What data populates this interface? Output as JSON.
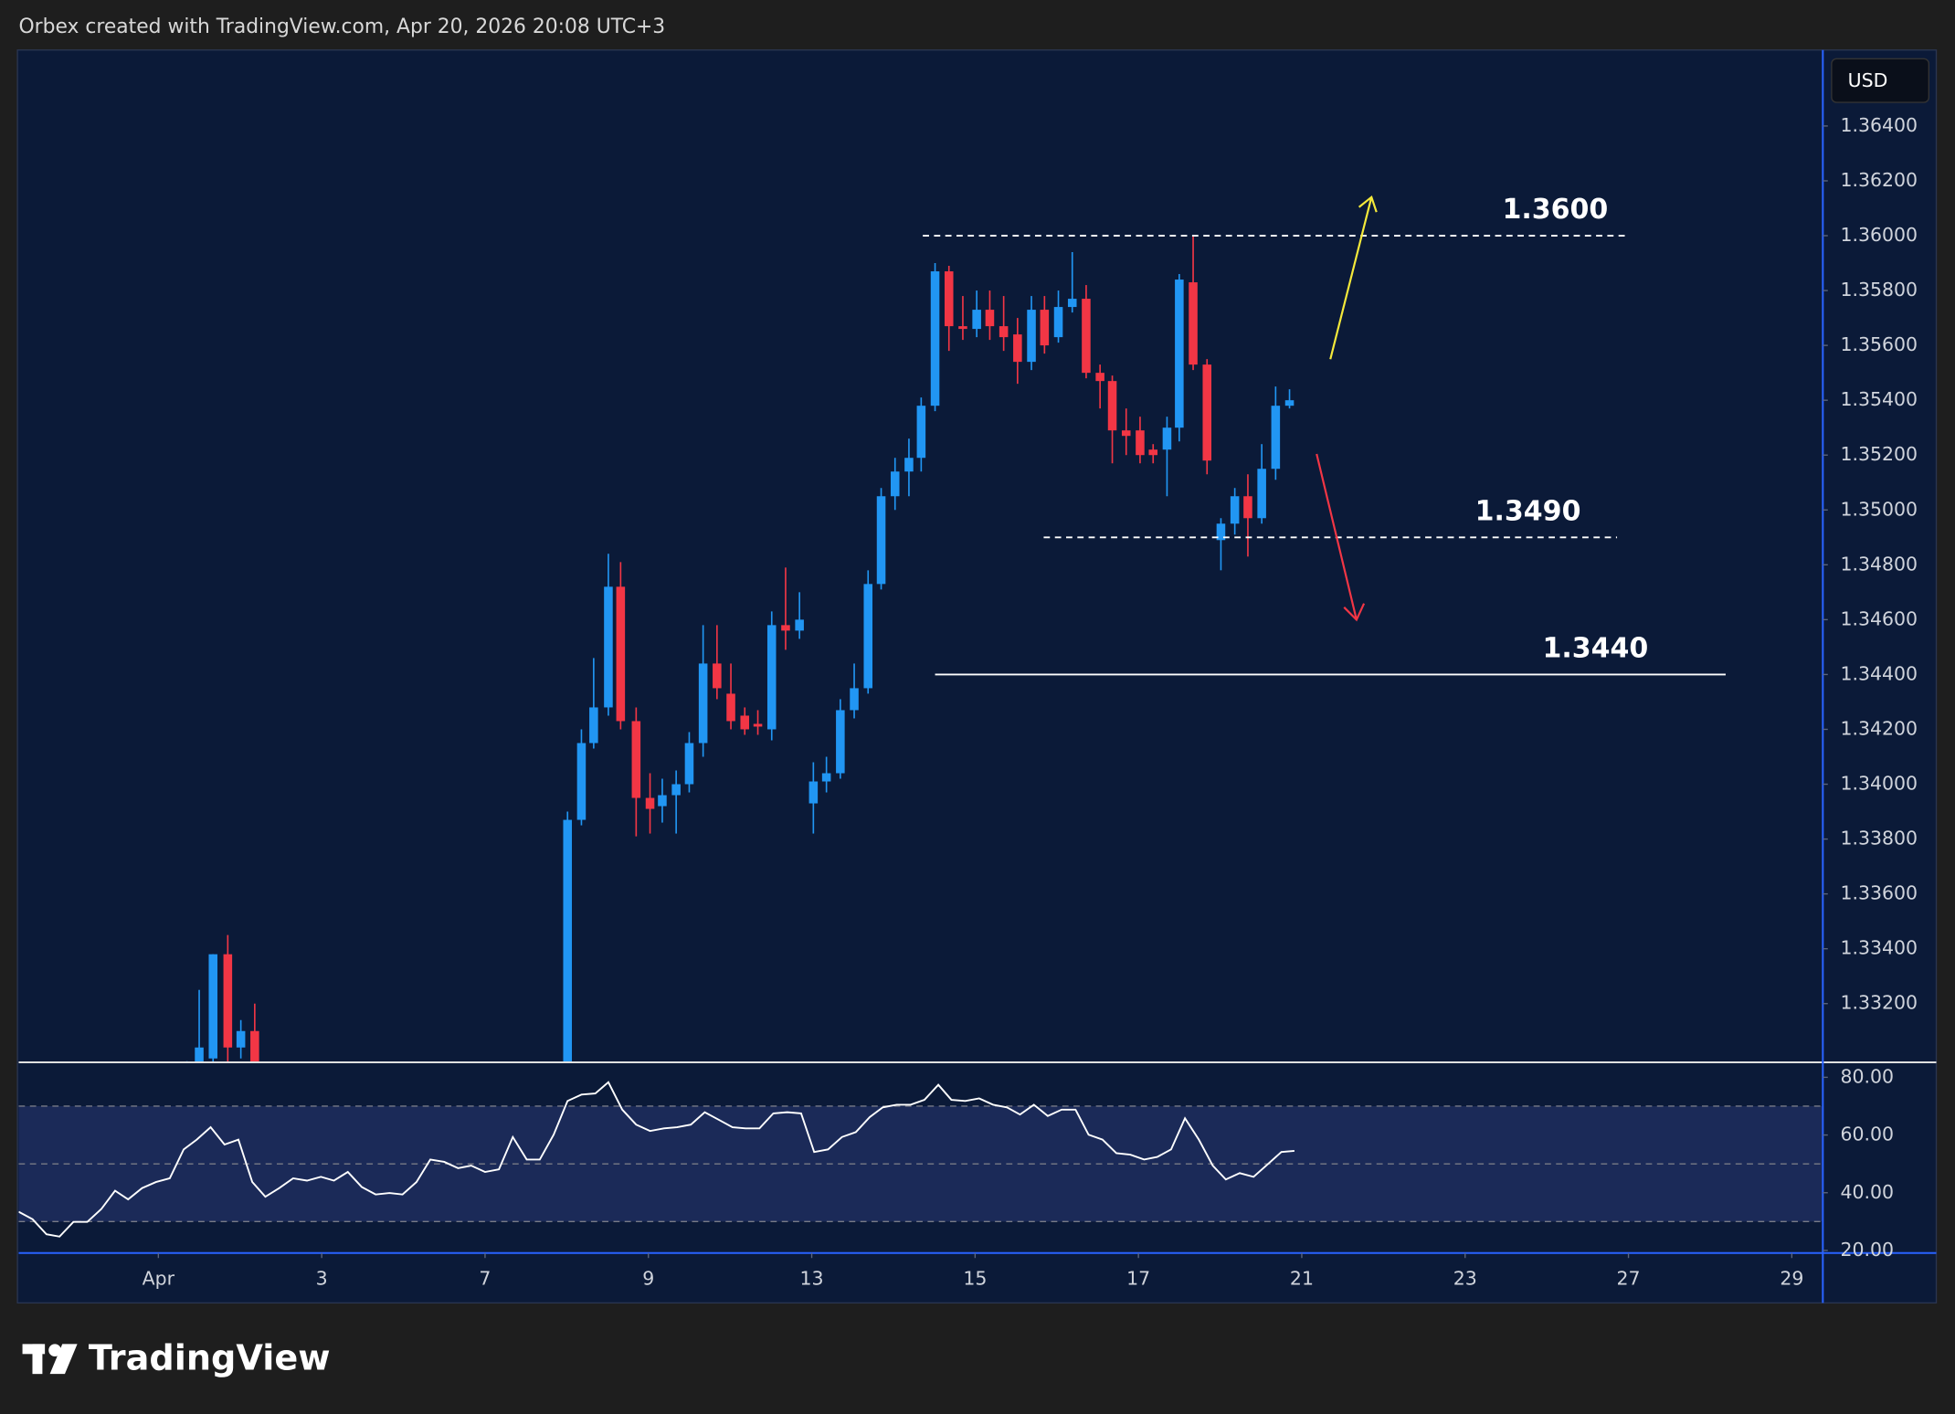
{
  "chart_data": {
    "type": "candlestick",
    "title": "Orbex created with TradingView.com, Apr 20, 2026 20:08 UTC+3",
    "currency": "USD",
    "up_color": "#2196f3",
    "down_color": "#f23645",
    "xlim": [
      -1.71,
      20.38
    ],
    "xticks": [
      {
        "value": 0,
        "label": "Apr"
      },
      {
        "value": 2,
        "label": "3"
      },
      {
        "value": 4,
        "label": "7"
      },
      {
        "value": 6,
        "label": "9"
      },
      {
        "value": 8,
        "label": "13"
      },
      {
        "value": 10,
        "label": "15"
      },
      {
        "value": 12,
        "label": "17"
      },
      {
        "value": 14,
        "label": "21"
      },
      {
        "value": 16,
        "label": "23"
      },
      {
        "value": 18,
        "label": "27"
      },
      {
        "value": 20,
        "label": "29"
      }
    ],
    "ylim": [
      1.32986,
      1.36677
    ],
    "yticks": [
      {
        "value": 1.332,
        "label": "1.33200"
      },
      {
        "value": 1.334,
        "label": "1.33400"
      },
      {
        "value": 1.336,
        "label": "1.33600"
      },
      {
        "value": 1.338,
        "label": "1.33800"
      },
      {
        "value": 1.34,
        "label": "1.34000"
      },
      {
        "value": 1.342,
        "label": "1.34200"
      },
      {
        "value": 1.344,
        "label": "1.34400"
      },
      {
        "value": 1.346,
        "label": "1.34600"
      },
      {
        "value": 1.348,
        "label": "1.34800"
      },
      {
        "value": 1.35,
        "label": "1.35000"
      },
      {
        "value": 1.352,
        "label": "1.35200"
      },
      {
        "value": 1.354,
        "label": "1.35400"
      },
      {
        "value": 1.356,
        "label": "1.35600"
      },
      {
        "value": 1.358,
        "label": "1.35800"
      },
      {
        "value": 1.36,
        "label": "1.36000"
      },
      {
        "value": 1.362,
        "label": "1.36200"
      },
      {
        "value": 1.364,
        "label": "1.36400"
      }
    ],
    "x": [
      0.35,
      0.5,
      0.67,
      0.85,
      1.01,
      1.18,
      5.01,
      5.18,
      5.33,
      5.51,
      5.66,
      5.85,
      6.02,
      6.17,
      6.34,
      6.5,
      6.67,
      6.84,
      7.01,
      7.18,
      7.34,
      7.51,
      7.68,
      7.85,
      8.02,
      8.18,
      8.35,
      8.52,
      8.69,
      8.85,
      9.02,
      9.19,
      9.34,
      9.51,
      9.68,
      9.85,
      10.02,
      10.18,
      10.35,
      10.52,
      10.69,
      10.85,
      11.02,
      11.19,
      11.36,
      11.53,
      11.68,
      11.85,
      12.02,
      12.18,
      12.35,
      12.5,
      12.67,
      12.84,
      13.01,
      13.18,
      13.34,
      13.51,
      13.68,
      13.85
    ],
    "open": [
      1.3296,
      1.329,
      1.33,
      1.3338,
      1.3304,
      1.331,
      1.327,
      1.3387,
      1.3415,
      1.3428,
      1.3472,
      1.3423,
      1.3395,
      1.3392,
      1.3396,
      1.34,
      1.3415,
      1.3444,
      1.3433,
      1.3425,
      1.3422,
      1.342,
      1.3458,
      1.3456,
      1.3393,
      1.3401,
      1.3404,
      1.3427,
      1.3435,
      1.3473,
      1.3505,
      1.3514,
      1.3519,
      1.3538,
      1.3587,
      1.3567,
      1.3566,
      1.3573,
      1.3567,
      1.3564,
      1.3554,
      1.3573,
      1.3563,
      1.3574,
      1.3577,
      1.355,
      1.3547,
      1.3529,
      1.3529,
      1.3522,
      1.3522,
      1.353,
      1.3583,
      1.3553,
      1.3489,
      1.3495,
      1.3505,
      1.3497,
      1.3515,
      1.3538
    ],
    "high": [
      1.3299,
      1.3325,
      1.3338,
      1.3345,
      1.3314,
      1.332,
      1.339,
      1.342,
      1.3446,
      1.3484,
      1.3481,
      1.3428,
      1.3404,
      1.3402,
      1.3405,
      1.3419,
      1.3458,
      1.3458,
      1.3444,
      1.3428,
      1.3427,
      1.3463,
      1.3479,
      1.347,
      1.3408,
      1.341,
      1.3431,
      1.3444,
      1.3478,
      1.3508,
      1.3519,
      1.3526,
      1.3541,
      1.359,
      1.3589,
      1.3578,
      1.358,
      1.358,
      1.3578,
      1.357,
      1.3578,
      1.3578,
      1.358,
      1.3594,
      1.3582,
      1.3553,
      1.3549,
      1.3537,
      1.3534,
      1.3524,
      1.3534,
      1.3586,
      1.36,
      1.3555,
      1.3497,
      1.3508,
      1.3513,
      1.3524,
      1.3545,
      1.3544
    ],
    "low": [
      1.3294,
      1.3285,
      1.329,
      1.3295,
      1.33,
      1.328,
      1.3265,
      1.3385,
      1.3413,
      1.3425,
      1.342,
      1.3381,
      1.3382,
      1.3386,
      1.3382,
      1.3397,
      1.341,
      1.3431,
      1.342,
      1.3418,
      1.3418,
      1.3416,
      1.3449,
      1.3453,
      1.3382,
      1.3397,
      1.3402,
      1.3424,
      1.3433,
      1.3471,
      1.35,
      1.3505,
      1.3514,
      1.3536,
      1.3558,
      1.3562,
      1.3563,
      1.3562,
      1.3558,
      1.3546,
      1.3551,
      1.3557,
      1.3561,
      1.3572,
      1.3548,
      1.3537,
      1.3517,
      1.352,
      1.3517,
      1.3517,
      1.3505,
      1.3525,
      1.3551,
      1.3513,
      1.3478,
      1.3491,
      1.3483,
      1.3495,
      1.3511,
      1.3537
    ],
    "close": [
      1.3298,
      1.3304,
      1.3338,
      1.3304,
      1.331,
      1.329,
      1.3387,
      1.3415,
      1.3428,
      1.3472,
      1.3423,
      1.3395,
      1.3391,
      1.3396,
      1.34,
      1.3415,
      1.3444,
      1.3435,
      1.3423,
      1.342,
      1.3421,
      1.3458,
      1.3456,
      1.346,
      1.3401,
      1.3404,
      1.3427,
      1.3435,
      1.3473,
      1.3505,
      1.3514,
      1.3519,
      1.3538,
      1.3587,
      1.3567,
      1.3566,
      1.3573,
      1.3567,
      1.3563,
      1.3554,
      1.3573,
      1.356,
      1.3574,
      1.3577,
      1.355,
      1.3547,
      1.3529,
      1.3527,
      1.352,
      1.352,
      1.353,
      1.3584,
      1.3553,
      1.3518,
      1.3495,
      1.3505,
      1.3497,
      1.3515,
      1.3538,
      1.354
    ],
    "levels": [
      {
        "value": 1.36,
        "label": "1.3600",
        "x": [
          9.36,
          17.98
        ],
        "style": "dashed"
      },
      {
        "value": 1.349,
        "label": "1.3490",
        "x": [
          10.84,
          17.86
        ],
        "style": "dashed"
      },
      {
        "value": 1.344,
        "label": "1.3440",
        "x": [
          9.51,
          19.19
        ],
        "style": "solid"
      }
    ],
    "indicator": {
      "type": "line",
      "color": "#ffffff",
      "ylim": [
        19.1,
        85.2
      ],
      "yticks": [
        {
          "value": 80,
          "label": "80.00"
        },
        {
          "value": 60,
          "label": "60.00"
        },
        {
          "value": 40,
          "label": "40.00"
        },
        {
          "value": 20,
          "label": "20.00"
        }
      ],
      "band": [
        30,
        70
      ],
      "midline": 50,
      "x": [
        -1.71,
        -1.54,
        -1.37,
        -1.21,
        -1.04,
        -0.87,
        -0.7,
        -0.53,
        -0.37,
        -0.2,
        -0.03,
        0.14,
        0.31,
        0.47,
        0.64,
        0.81,
        0.98,
        1.15,
        1.31,
        1.48,
        1.65,
        1.82,
        1.99,
        2.15,
        2.32,
        2.49,
        2.66,
        2.83,
        2.99,
        3.16,
        3.33,
        3.5,
        3.67,
        3.83,
        4.0,
        4.17,
        4.34,
        4.51,
        4.67,
        4.84,
        5.01,
        5.18,
        5.35,
        5.51,
        5.68,
        5.85,
        6.02,
        6.19,
        6.35,
        6.52,
        6.69,
        6.86,
        7.03,
        7.19,
        7.36,
        7.53,
        7.7,
        7.87,
        8.03,
        8.2,
        8.37,
        8.54,
        8.71,
        8.87,
        9.04,
        9.21,
        9.38,
        9.55,
        9.71,
        9.88,
        10.05,
        10.22,
        10.39,
        10.55,
        10.72,
        10.89,
        11.06,
        11.23,
        11.39,
        11.56,
        11.73,
        11.9,
        12.07,
        12.23,
        12.4,
        12.57,
        12.74,
        12.91,
        13.07,
        13.24,
        13.41,
        13.58,
        13.75,
        13.91
      ],
      "values": [
        33.4,
        30.8,
        25.6,
        24.8,
        29.9,
        29.9,
        34.3,
        40.7,
        37.7,
        41.6,
        43.7,
        45.0,
        55.0,
        58.4,
        62.7,
        56.7,
        58.4,
        43.7,
        38.6,
        41.6,
        45.0,
        44.2,
        45.5,
        44.2,
        47.2,
        42.0,
        39.4,
        39.9,
        39.4,
        43.7,
        51.5,
        50.7,
        48.5,
        49.4,
        47.2,
        48.1,
        59.3,
        51.5,
        51.5,
        60.1,
        71.8,
        74.0,
        74.4,
        78.3,
        68.8,
        63.6,
        61.4,
        62.3,
        62.7,
        63.6,
        67.9,
        65.3,
        62.7,
        62.3,
        62.3,
        67.5,
        67.9,
        67.5,
        54.1,
        55.0,
        59.3,
        61.0,
        66.2,
        69.6,
        70.5,
        70.5,
        72.2,
        77.4,
        72.2,
        71.8,
        72.7,
        70.5,
        69.6,
        67.1,
        70.5,
        66.6,
        68.8,
        68.8,
        60.1,
        58.4,
        53.7,
        53.2,
        51.5,
        52.4,
        55.0,
        65.8,
        58.4,
        49.4,
        44.6,
        46.8,
        45.5,
        49.8,
        54.1,
        54.5
      ]
    }
  },
  "page": {
    "brand": "TradingView"
  }
}
